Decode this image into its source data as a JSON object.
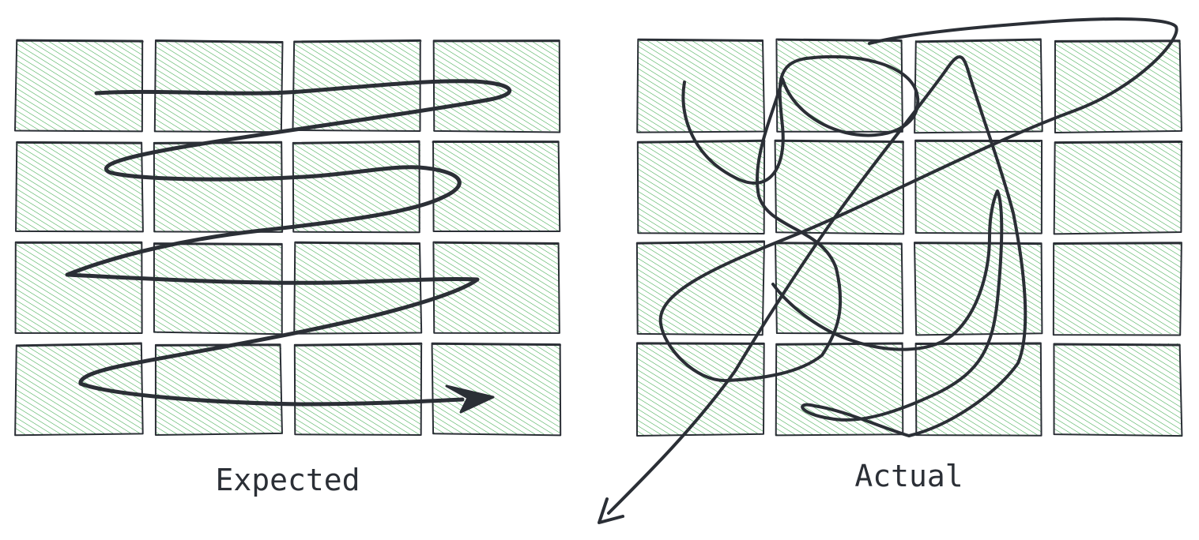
{
  "diagram": {
    "colors": {
      "hatch": "#3aa84a",
      "cell_bg": "#ffffff",
      "stroke": "#2b2f36"
    },
    "panels": [
      {
        "caption": "Expected",
        "grid": {
          "rows": 4,
          "columns": 4
        },
        "path_style": "serpentine traversal ending in arrowhead"
      },
      {
        "caption": "Actual",
        "grid": {
          "rows": 4,
          "columns": 4
        },
        "path_style": "tangled scribble exiting with arrowhead"
      }
    ]
  }
}
